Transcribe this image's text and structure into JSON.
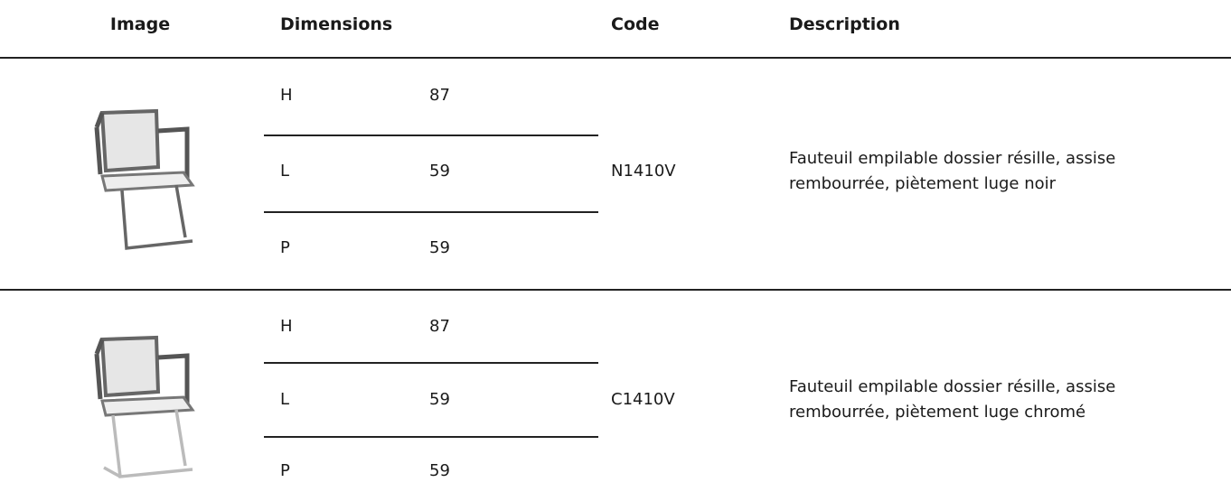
{
  "header": {
    "image": "Image",
    "dimensions": "Dimensions",
    "code": "Code",
    "description": "Description"
  },
  "rows": [
    {
      "dimensions": [
        {
          "label": "H",
          "value": 87
        },
        {
          "label": "L",
          "value": 59
        },
        {
          "label": "P",
          "value": 59
        }
      ],
      "code": "N1410V",
      "description": "Fauteuil empilable dossier résille, assise rembourrée, piètement luge noir"
    },
    {
      "dimensions": [
        {
          "label": "H",
          "value": 87
        },
        {
          "label": "L",
          "value": 59
        },
        {
          "label": "P",
          "value": 59
        }
      ],
      "code": "C1410V",
      "description": "Fauteuil empilable dossier résille, assise rembourrée, piètement luge chromé"
    }
  ]
}
